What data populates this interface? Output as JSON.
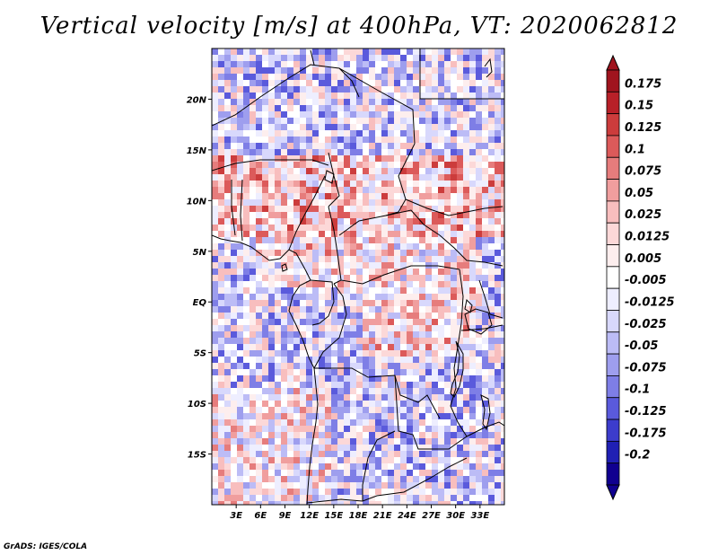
{
  "title": "Vertical velocity [m/s] at 400hPa, VT: 2020062812",
  "credit": "GrADS: IGES/COLA",
  "map": {
    "lon_range": [
      0,
      36
    ],
    "lat_range": [
      -20,
      25
    ],
    "lat_ticks": [
      {
        "value": 20,
        "label": "20N"
      },
      {
        "value": 15,
        "label": "15N"
      },
      {
        "value": 10,
        "label": "10N"
      },
      {
        "value": 5,
        "label": "5N"
      },
      {
        "value": 0,
        "label": "EQ"
      },
      {
        "value": -5,
        "label": "5S"
      },
      {
        "value": -10,
        "label": "10S"
      },
      {
        "value": -15,
        "label": "15S"
      }
    ],
    "lon_ticks": [
      {
        "value": 3,
        "label": "3E"
      },
      {
        "value": 6,
        "label": "6E"
      },
      {
        "value": 9,
        "label": "9E"
      },
      {
        "value": 12,
        "label": "12E"
      },
      {
        "value": 15,
        "label": "15E"
      },
      {
        "value": 18,
        "label": "18E"
      },
      {
        "value": 21,
        "label": "21E"
      },
      {
        "value": 24,
        "label": "24E"
      },
      {
        "value": 27,
        "label": "27E"
      },
      {
        "value": 30,
        "label": "30E"
      },
      {
        "value": 33,
        "label": "33E"
      }
    ]
  },
  "colorbar": {
    "labels": [
      "0.175",
      "0.15",
      "0.125",
      "0.1",
      "0.075",
      "0.05",
      "0.025",
      "0.0125",
      "0.005",
      "-0.005",
      "-0.0125",
      "-0.025",
      "-0.05",
      "-0.075",
      "-0.1",
      "-0.125",
      "-0.175",
      "-0.2"
    ],
    "colors": [
      "#a0141e",
      "#b82028",
      "#cc3c3c",
      "#dc5a5a",
      "#e67c7c",
      "#f09e9e",
      "#f8bebe",
      "#fcd8d8",
      "#fdeeee",
      "#ffffff",
      "#eeeeff",
      "#d8d8fc",
      "#bcbcf6",
      "#9e9eee",
      "#7e7ee6",
      "#5a5adc",
      "#3c3ccc",
      "#2020b4",
      "#100090"
    ]
  }
}
